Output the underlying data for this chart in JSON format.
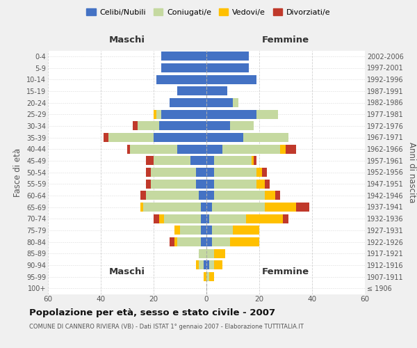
{
  "age_groups": [
    "100+",
    "95-99",
    "90-94",
    "85-89",
    "80-84",
    "75-79",
    "70-74",
    "65-69",
    "60-64",
    "55-59",
    "50-54",
    "45-49",
    "40-44",
    "35-39",
    "30-34",
    "25-29",
    "20-24",
    "15-19",
    "10-14",
    "5-9",
    "0-4"
  ],
  "birth_years": [
    "≤ 1906",
    "1907-1911",
    "1912-1916",
    "1917-1921",
    "1922-1926",
    "1927-1931",
    "1932-1936",
    "1937-1941",
    "1942-1946",
    "1947-1951",
    "1952-1956",
    "1957-1961",
    "1962-1966",
    "1967-1971",
    "1972-1976",
    "1977-1981",
    "1982-1986",
    "1987-1991",
    "1992-1996",
    "1997-2001",
    "2002-2006"
  ],
  "maschi": {
    "celibi": [
      0,
      0,
      1,
      0,
      2,
      2,
      2,
      2,
      3,
      4,
      4,
      6,
      11,
      20,
      18,
      17,
      14,
      11,
      19,
      17,
      17
    ],
    "coniugati": [
      0,
      0,
      2,
      3,
      9,
      8,
      14,
      22,
      20,
      17,
      17,
      14,
      18,
      17,
      8,
      2,
      0,
      0,
      0,
      0,
      0
    ],
    "vedovi": [
      0,
      1,
      1,
      0,
      1,
      2,
      2,
      1,
      0,
      0,
      0,
      0,
      0,
      0,
      0,
      1,
      0,
      0,
      0,
      0,
      0
    ],
    "divorziati": [
      0,
      0,
      0,
      0,
      2,
      0,
      2,
      0,
      2,
      2,
      2,
      3,
      1,
      2,
      2,
      0,
      0,
      0,
      0,
      0,
      0
    ]
  },
  "femmine": {
    "nubili": [
      0,
      0,
      1,
      0,
      2,
      2,
      1,
      2,
      3,
      3,
      3,
      3,
      6,
      14,
      9,
      19,
      10,
      8,
      19,
      16,
      16
    ],
    "coniugate": [
      0,
      1,
      2,
      3,
      7,
      8,
      14,
      20,
      19,
      16,
      16,
      14,
      22,
      17,
      9,
      8,
      2,
      0,
      0,
      0,
      0
    ],
    "vedove": [
      0,
      2,
      3,
      4,
      11,
      10,
      14,
      12,
      4,
      3,
      2,
      1,
      2,
      0,
      0,
      0,
      0,
      0,
      0,
      0,
      0
    ],
    "divorziate": [
      0,
      0,
      0,
      0,
      0,
      0,
      2,
      5,
      2,
      2,
      2,
      1,
      4,
      0,
      0,
      0,
      0,
      0,
      0,
      0,
      0
    ]
  },
  "colors": {
    "celibi": "#4472c4",
    "coniugati": "#c5d9a0",
    "vedovi": "#ffc000",
    "divorziati": "#c0392b"
  },
  "title": "Popolazione per età, sesso e stato civile - 2007",
  "subtitle": "COMUNE DI CANNERO RIVIERA (VB) - Dati ISTAT 1° gennaio 2007 - Elaborazione TUTTITALIA.IT",
  "xlabel_maschi": "Maschi",
  "xlabel_femmine": "Femmine",
  "ylabel_left": "Fasce di età",
  "ylabel_right": "Anni di nascita",
  "xlim": 60,
  "bg_color": "#f0f0f0",
  "plot_bg": "#ffffff",
  "grid_color": "#cccccc"
}
